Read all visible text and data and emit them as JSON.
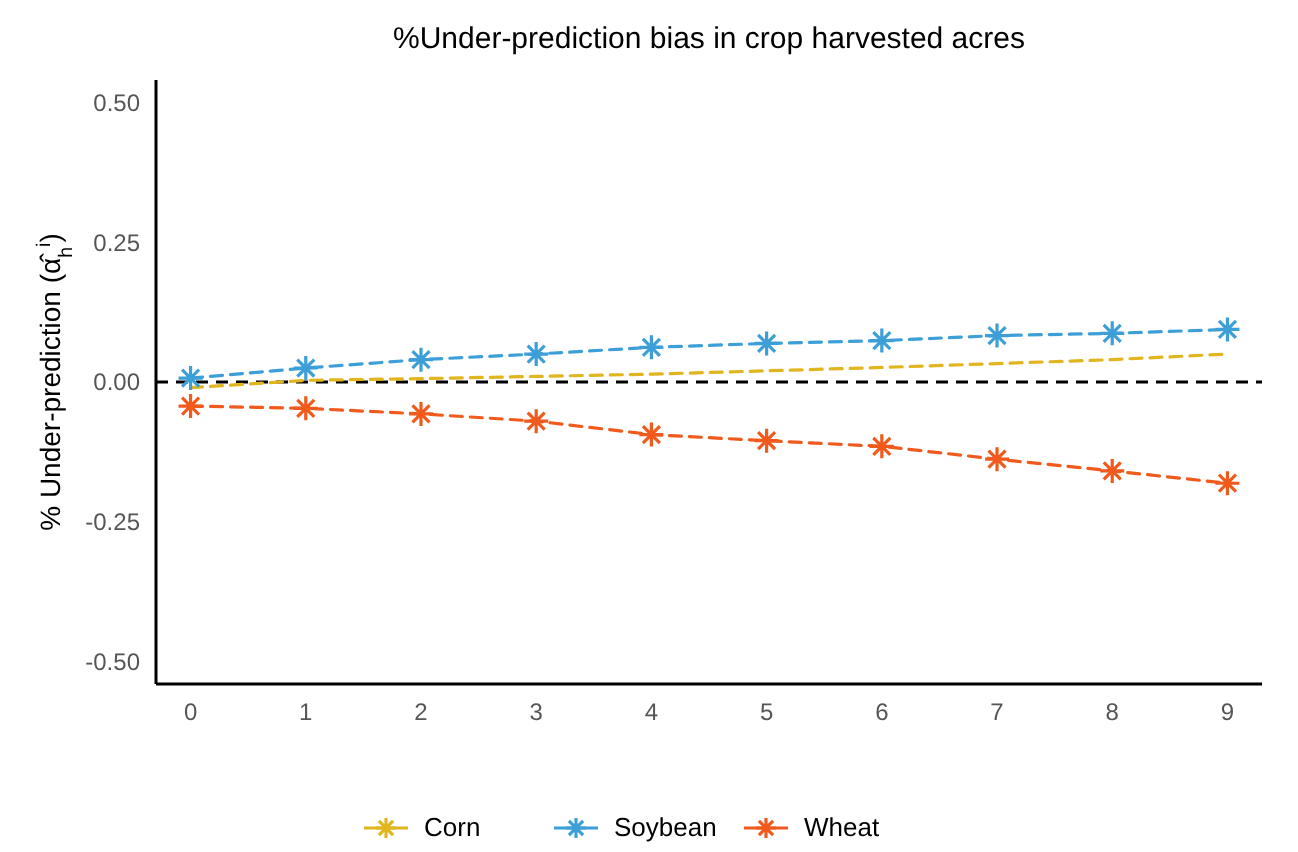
{
  "chart_data": {
    "type": "line",
    "title": "%Under-prediction bias in crop harvested acres",
    "ylabel": "% Under-prediction (α̂$_{h}$$^{i}$)",
    "x": [
      0,
      1,
      2,
      3,
      4,
      5,
      6,
      7,
      8,
      9
    ],
    "xlim": [
      -0.3,
      9.3
    ],
    "xticks": [
      0,
      1,
      2,
      3,
      4,
      5,
      6,
      7,
      8,
      9
    ],
    "ylim": [
      -0.54,
      0.54
    ],
    "yticks": [
      {
        "value": -0.5,
        "label": "-0.50"
      },
      {
        "value": -0.25,
        "label": "-0.25"
      },
      {
        "value": 0,
        "label": "0.00"
      },
      {
        "value": 0.25,
        "label": "0.25"
      },
      {
        "value": 0.5,
        "label": "0.50"
      }
    ],
    "grid": false,
    "legend": "bottom",
    "marker": "cross",
    "line_style": "dashed",
    "ref_lines": [
      {
        "axis": "y",
        "value": 0,
        "color": "#000000",
        "line_style": "dashed"
      }
    ],
    "series": [
      {
        "name": "Corn",
        "color": "#e0b51e",
        "marker": "none",
        "values": [
          -0.01,
          0.003,
          0.006,
          0.01,
          0.014,
          0.02,
          0.026,
          0.033,
          0.04,
          0.05
        ]
      },
      {
        "name": "Soybean",
        "color": "#3d9fd8",
        "values": [
          0.007,
          0.025,
          0.04,
          0.05,
          0.062,
          0.069,
          0.074,
          0.083,
          0.087,
          0.094
        ]
      },
      {
        "name": "Wheat",
        "color": "#f05a1c",
        "values": [
          -0.043,
          -0.047,
          -0.057,
          -0.07,
          -0.094,
          -0.105,
          -0.115,
          -0.138,
          -0.159,
          -0.181
        ]
      }
    ]
  }
}
